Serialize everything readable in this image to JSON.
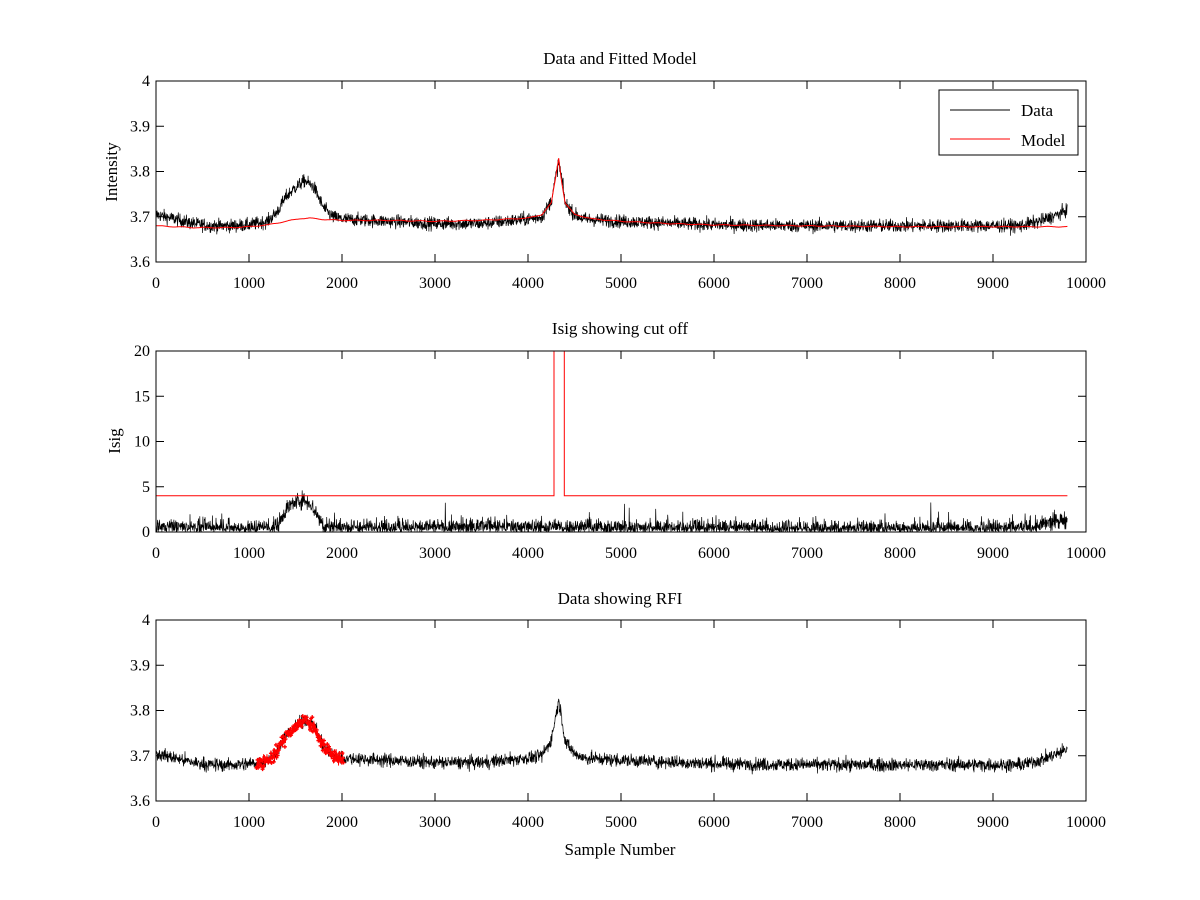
{
  "colors": {
    "data": "#000000",
    "model": "#ff0000",
    "rfi": "#ff0000",
    "axes": "#000000",
    "background": "#ffffff"
  },
  "chart_data": [
    {
      "type": "line",
      "title": "Data and Fitted Model",
      "xlabel": "",
      "ylabel": "Intensity",
      "xlim": [
        0,
        10000
      ],
      "ylim": [
        3.6,
        4
      ],
      "xticks": [
        0,
        1000,
        2000,
        3000,
        4000,
        5000,
        6000,
        7000,
        8000,
        9000,
        10000
      ],
      "yticks": [
        3.6,
        3.7,
        3.8,
        3.9,
        4
      ],
      "yticklabels": [
        "3.6",
        "3.7",
        "3.8",
        "3.9",
        "4"
      ],
      "legend": {
        "position": "top-right",
        "entries": [
          "Data",
          "Model"
        ]
      },
      "series": [
        {
          "name": "Data",
          "color": "#000000",
          "kind": "noisy",
          "noise": 0.014,
          "x": [
            0,
            100,
            200,
            400,
            600,
            800,
            1000,
            1200,
            1300,
            1400,
            1500,
            1600,
            1700,
            1800,
            1900,
            2000,
            2500,
            3000,
            3500,
            4000,
            4150,
            4250,
            4300,
            4330,
            4360,
            4400,
            4500,
            4600,
            5000,
            6000,
            7000,
            8000,
            9000,
            9300,
            9500,
            9700,
            9800
          ],
          "values": [
            3.705,
            3.7,
            3.695,
            3.685,
            3.68,
            3.68,
            3.682,
            3.69,
            3.71,
            3.745,
            3.765,
            3.78,
            3.765,
            3.72,
            3.7,
            3.695,
            3.69,
            3.685,
            3.685,
            3.695,
            3.7,
            3.735,
            3.79,
            3.82,
            3.79,
            3.73,
            3.705,
            3.695,
            3.69,
            3.682,
            3.68,
            3.68,
            3.68,
            3.68,
            3.69,
            3.705,
            3.715
          ]
        },
        {
          "name": "Model",
          "color": "#ff0000",
          "kind": "smooth",
          "x": [
            0,
            200,
            400,
            600,
            800,
            1000,
            1200,
            1400,
            1550,
            1650,
            1800,
            2000,
            2500,
            3000,
            3500,
            4000,
            4150,
            4250,
            4300,
            4330,
            4360,
            4400,
            4500,
            4700,
            5000,
            5500,
            6000,
            7000,
            8000,
            9000,
            9800
          ],
          "values": [
            3.68,
            3.678,
            3.676,
            3.676,
            3.676,
            3.678,
            3.682,
            3.69,
            3.696,
            3.697,
            3.694,
            3.692,
            3.692,
            3.69,
            3.692,
            3.697,
            3.705,
            3.73,
            3.79,
            3.83,
            3.78,
            3.73,
            3.705,
            3.695,
            3.69,
            3.685,
            3.682,
            3.68,
            3.678,
            3.678,
            3.678
          ]
        }
      ]
    },
    {
      "type": "line",
      "title": "Isig showing cut off",
      "xlabel": "",
      "ylabel": "Isig",
      "xlim": [
        0,
        10000
      ],
      "ylim": [
        0,
        20
      ],
      "xticks": [
        0,
        1000,
        2000,
        3000,
        4000,
        5000,
        6000,
        7000,
        8000,
        9000,
        10000
      ],
      "yticks": [
        0,
        5,
        10,
        15,
        20
      ],
      "yticklabels": [
        "0",
        "5",
        "10",
        "15",
        "20"
      ],
      "series": [
        {
          "name": "Isig",
          "color": "#000000",
          "kind": "abs-noisy",
          "noise": 0.9,
          "x": [
            0,
            300,
            600,
            1000,
            1300,
            1400,
            1550,
            1650,
            1750,
            1800,
            2000,
            3000,
            3600,
            4000,
            5000,
            6000,
            7000,
            8000,
            9000,
            9400,
            9600,
            9800
          ],
          "values": [
            0.6,
            0.5,
            0.4,
            0.4,
            0.6,
            2.6,
            3.6,
            3.3,
            1.6,
            0.7,
            0.5,
            0.5,
            0.6,
            0.5,
            0.5,
            0.4,
            0.4,
            0.4,
            0.4,
            0.4,
            1.0,
            1.4
          ]
        },
        {
          "name": "Cut off",
          "color": "#ff0000",
          "kind": "step",
          "x": [
            0,
            4280,
            4280,
            4390,
            4390,
            9800
          ],
          "values": [
            4,
            4,
            20,
            20,
            4,
            4
          ]
        }
      ]
    },
    {
      "type": "line",
      "title": "Data showing RFI",
      "xlabel": "Sample Number",
      "ylabel": "",
      "xlim": [
        0,
        10000
      ],
      "ylim": [
        3.6,
        4
      ],
      "xticks": [
        0,
        1000,
        2000,
        3000,
        4000,
        5000,
        6000,
        7000,
        8000,
        9000,
        10000
      ],
      "yticks": [
        3.6,
        3.7,
        3.8,
        3.9,
        4
      ],
      "yticklabels": [
        "3.6",
        "3.7",
        "3.8",
        "3.9",
        "4"
      ],
      "series": [
        {
          "name": "Data",
          "color": "#000000",
          "kind": "noisy",
          "noise": 0.014,
          "x": [
            0,
            100,
            200,
            400,
            600,
            800,
            1000,
            1200,
            1300,
            1400,
            1500,
            1600,
            1700,
            1800,
            1900,
            2000,
            2500,
            3000,
            3500,
            4000,
            4150,
            4250,
            4300,
            4330,
            4360,
            4400,
            4500,
            4600,
            5000,
            6000,
            7000,
            8000,
            9000,
            9300,
            9500,
            9700,
            9800
          ],
          "values": [
            3.705,
            3.7,
            3.695,
            3.685,
            3.68,
            3.68,
            3.682,
            3.69,
            3.71,
            3.745,
            3.765,
            3.78,
            3.765,
            3.72,
            3.7,
            3.695,
            3.69,
            3.685,
            3.685,
            3.695,
            3.7,
            3.735,
            3.79,
            3.82,
            3.79,
            3.73,
            3.705,
            3.695,
            3.69,
            3.682,
            3.68,
            3.68,
            3.68,
            3.68,
            3.69,
            3.705,
            3.715
          ]
        },
        {
          "name": "RFI",
          "color": "#ff0000",
          "kind": "markers",
          "noise": 0.014,
          "x": [
            1080,
            1200,
            1300,
            1400,
            1500,
            1600,
            1700,
            1800,
            1900,
            2020
          ],
          "values": [
            3.68,
            3.69,
            3.71,
            3.745,
            3.765,
            3.78,
            3.765,
            3.72,
            3.7,
            3.695
          ]
        }
      ]
    }
  ]
}
